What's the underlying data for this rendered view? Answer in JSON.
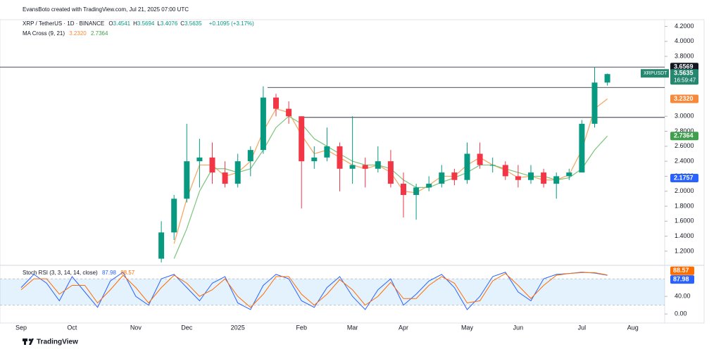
{
  "chart_data": {
    "type": "candlestick",
    "credit": "EvansBoto created with TradingView.com, Jul 21, 2025 07:00 UTC",
    "symbol": "XRP / TetherUS · 1D · BINANCE",
    "ohlc_labels": [
      "O",
      "H",
      "L",
      "C"
    ],
    "ohlc": [
      3.4541,
      3.5694,
      3.4076,
      3.5635
    ],
    "change": "+0.1095 (+3.17%)",
    "ma_title": "MA Cross (9, 21)",
    "ma_values": [
      "3.2320",
      "2.7364"
    ],
    "rsi_title": "Stoch RSI (3, 3, 14, 14, close)",
    "rsi_values": [
      "87.98",
      "88.57"
    ],
    "footer": "TradingView",
    "categories": [
      "Sep",
      null,
      null,
      null,
      "Oct",
      null,
      null,
      null,
      null,
      "Nov",
      null,
      null,
      null,
      "Dec",
      null,
      null,
      null,
      "2025",
      null,
      null,
      null,
      null,
      "Feb",
      null,
      null,
      null,
      "Mar",
      null,
      null,
      null,
      "Apr",
      null,
      null,
      null,
      null,
      "May",
      null,
      null,
      null,
      "Jun",
      null,
      null,
      null,
      null,
      "Jul",
      null,
      null,
      null,
      "Aug",
      null,
      null,
      null
    ],
    "open": [
      null,
      null,
      null,
      null,
      null,
      null,
      null,
      null,
      null,
      null,
      null,
      1.1,
      1.45,
      1.9,
      2.4,
      2.45,
      2.25,
      2.1,
      2.4,
      2.55,
      3.25,
      3.1,
      3.0,
      2.4,
      2.45,
      2.6,
      2.3,
      2.35,
      2.3,
      2.4,
      2.1,
      1.95,
      2.05,
      2.1,
      2.25,
      2.15,
      2.5,
      2.35,
      2.35,
      2.2,
      2.15,
      2.25,
      2.1,
      2.2,
      2.25,
      2.9,
      3.45,
      null,
      null,
      null,
      null,
      null
    ],
    "high": [
      null,
      null,
      null,
      null,
      null,
      null,
      null,
      null,
      null,
      null,
      null,
      1.6,
      1.95,
      2.9,
      2.7,
      2.65,
      2.4,
      2.5,
      2.6,
      3.4,
      3.3,
      3.2,
      3.0,
      2.6,
      2.85,
      2.65,
      3.0,
      2.45,
      2.6,
      2.55,
      2.25,
      2.1,
      2.2,
      2.35,
      2.3,
      2.65,
      2.65,
      2.45,
      2.4,
      2.35,
      2.35,
      2.3,
      2.25,
      2.3,
      2.95,
      3.66,
      3.57,
      null,
      null,
      null,
      null,
      null
    ],
    "low": [
      null,
      null,
      null,
      null,
      null,
      null,
      null,
      null,
      null,
      null,
      null,
      1.05,
      1.35,
      1.85,
      2.05,
      2.1,
      2.05,
      2.05,
      2.2,
      2.5,
      3.0,
      2.9,
      1.77,
      2.3,
      2.4,
      2.0,
      2.1,
      2.05,
      2.25,
      2.05,
      1.65,
      1.62,
      2.0,
      2.05,
      2.08,
      2.1,
      2.3,
      2.25,
      2.15,
      2.05,
      2.1,
      2.05,
      1.9,
      2.15,
      2.25,
      2.85,
      3.41,
      null,
      null,
      null,
      null,
      null
    ],
    "close": [
      null,
      null,
      null,
      null,
      null,
      null,
      null,
      null,
      null,
      null,
      null,
      1.45,
      1.9,
      2.4,
      2.45,
      2.25,
      2.1,
      2.4,
      2.55,
      3.25,
      3.1,
      3.0,
      2.4,
      2.45,
      2.6,
      2.3,
      2.35,
      2.3,
      2.4,
      2.1,
      1.95,
      2.05,
      2.1,
      2.25,
      2.15,
      2.5,
      2.35,
      2.35,
      2.2,
      2.15,
      2.25,
      2.1,
      2.2,
      2.25,
      2.9,
      3.45,
      3.5635,
      null,
      null,
      null,
      null,
      null
    ],
    "series": [
      {
        "name": "MA 9",
        "color": "#f7a35c",
        "values": [
          null,
          null,
          null,
          null,
          null,
          null,
          null,
          null,
          null,
          null,
          null,
          null,
          1.3,
          1.9,
          2.35,
          2.35,
          2.2,
          2.25,
          2.4,
          2.8,
          3.1,
          3.05,
          2.75,
          2.5,
          2.55,
          2.45,
          2.35,
          2.3,
          2.35,
          2.25,
          2.0,
          1.98,
          2.08,
          2.2,
          2.2,
          2.35,
          2.45,
          2.35,
          2.28,
          2.18,
          2.2,
          2.15,
          2.15,
          2.22,
          2.55,
          3.1,
          3.232,
          null,
          null,
          null,
          null,
          null
        ]
      },
      {
        "name": "MA 21",
        "color": "#7cc47a",
        "values": [
          null,
          null,
          null,
          null,
          null,
          null,
          null,
          null,
          null,
          null,
          null,
          null,
          1.1,
          1.5,
          2.0,
          2.3,
          2.3,
          2.25,
          2.3,
          2.55,
          2.85,
          3.0,
          2.9,
          2.7,
          2.6,
          2.5,
          2.4,
          2.35,
          2.35,
          2.3,
          2.15,
          2.05,
          2.05,
          2.12,
          2.18,
          2.25,
          2.35,
          2.35,
          2.3,
          2.25,
          2.2,
          2.2,
          2.15,
          2.18,
          2.3,
          2.55,
          2.7364,
          null,
          null,
          null,
          null,
          null
        ]
      }
    ],
    "ylim": [
      1.03,
      4.27
    ],
    "yticks": [
      {
        "value": 1.2,
        "label": "1.2000"
      },
      {
        "value": 1.4,
        "label": "1.4000"
      },
      {
        "value": 1.6,
        "label": "1.6000"
      },
      {
        "value": 1.8,
        "label": "1.8000"
      },
      {
        "value": 2.0,
        "label": "2.0000"
      },
      {
        "value": 2.2,
        "label": "2.2000"
      },
      {
        "value": 2.4,
        "label": "2.4000"
      },
      {
        "value": 2.6,
        "label": "2.6000"
      },
      {
        "value": 2.8,
        "label": "2.8000"
      },
      {
        "value": 3.0,
        "label": "3.0000"
      },
      {
        "value": 3.8,
        "label": "3.8000"
      },
      {
        "value": 4.0,
        "label": "4.0000"
      },
      {
        "value": 4.2,
        "label": "4.2000"
      }
    ],
    "levels": [
      3.6569,
      3.385,
      2.985
    ],
    "price_labels": [
      {
        "label": "3.6569",
        "value": 3.6569,
        "color": "#131722"
      },
      {
        "label": "3.2320",
        "value": 3.232,
        "color": "#f7893b"
      },
      {
        "label": "2.7364",
        "value": 2.7364,
        "color": "#3f9f4d"
      },
      {
        "label": "2.1757",
        "value": 2.1757,
        "color": "#2962ff"
      }
    ],
    "last_price": {
      "name": "XRPUSDT",
      "label": "3.5635",
      "value": 3.5635,
      "countdown": "16:59:47",
      "color": "#26866f"
    },
    "rsi": {
      "series": [
        {
          "name": "K",
          "color": "#2962ff",
          "values": [
            60,
            90,
            70,
            30,
            85,
            50,
            15,
            75,
            95,
            40,
            20,
            80,
            90,
            60,
            30,
            70,
            85,
            25,
            10,
            65,
            90,
            80,
            30,
            15,
            60,
            85,
            40,
            10,
            55,
            80,
            20,
            45,
            75,
            90,
            60,
            10,
            40,
            85,
            95,
            50,
            30,
            80,
            90,
            92,
            95,
            93,
            87.98,
            null,
            null,
            null,
            null,
            null
          ]
        },
        {
          "name": "D",
          "color": "#ff6d00",
          "values": [
            55,
            80,
            80,
            45,
            65,
            65,
            25,
            55,
            88,
            60,
            25,
            60,
            88,
            70,
            40,
            55,
            80,
            40,
            15,
            45,
            85,
            85,
            45,
            20,
            45,
            78,
            55,
            20,
            40,
            72,
            35,
            35,
            65,
            85,
            70,
            25,
            30,
            75,
            92,
            65,
            35,
            65,
            88,
            92,
            94,
            94,
            88.57,
            null,
            null,
            null,
            null,
            null
          ]
        }
      ],
      "ylim": [
        -19,
        109
      ],
      "band": [
        20,
        80
      ],
      "yticks": [
        {
          "value": 40,
          "label": "40.00"
        },
        {
          "value": 0,
          "label": "0.00"
        }
      ],
      "value_labels": [
        {
          "label": "88.57",
          "value": 88.57,
          "color": "#ff6d00"
        },
        {
          "label": "87.98",
          "value": 87.98,
          "color": "#2962ff"
        }
      ]
    }
  }
}
